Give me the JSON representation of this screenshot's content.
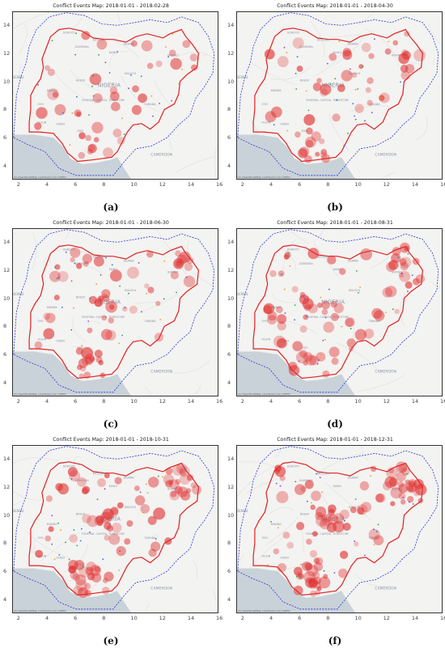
{
  "panels": [
    {
      "title": "Conflict Events Map: 2018-01-01 - 2018-02-28",
      "caption": "(a)",
      "intensity": 0.25,
      "seed": 11
    },
    {
      "title": "Conflict Events Map: 2018-01-01 - 2018-04-30",
      "caption": "(b)",
      "intensity": 0.4,
      "seed": 23
    },
    {
      "title": "Conflict Events Map: 2018-01-01 - 2018-06-30",
      "caption": "(c)",
      "intensity": 0.55,
      "seed": 37
    },
    {
      "title": "Conflict Events Map: 2018-01-01 - 2018-08-31",
      "caption": "(d)",
      "intensity": 0.7,
      "seed": 41
    },
    {
      "title": "Conflict Events Map: 2018-01-01 - 2018-10-31",
      "caption": "(e)",
      "intensity": 0.85,
      "seed": 53
    },
    {
      "title": "Conflict Events Map: 2018-01-01 - 2018-12-31",
      "caption": "(f)",
      "intensity": 1.0,
      "seed": 67
    }
  ],
  "map": {
    "x_ticks": [
      "2",
      "4",
      "6",
      "8",
      "10",
      "12",
      "14",
      "16"
    ],
    "y_ticks": [
      "14",
      "12",
      "10",
      "8",
      "6",
      "4"
    ],
    "region_labels": [
      "SOKOTO",
      "KATSINA",
      "ZAMFARA",
      "KANO",
      "JIGAWA",
      "BAUCHI",
      "NIGER",
      "KWARA",
      "OYO",
      "OGUN",
      "ONDO",
      "EDO",
      "FEDERAL CAPITAL TERRITORY",
      "NIGERIA",
      "TARABA",
      "BORNO"
    ],
    "country_labels": [
      "BENIN",
      "CAMEROON"
    ],
    "attribution": "(C) OpenStreetMap contributors (C) CARTO",
    "border_color": "#e02020",
    "buffer_color": "#2a35d8",
    "event_color": "#e03030",
    "water_color": "#c9d2d8"
  }
}
